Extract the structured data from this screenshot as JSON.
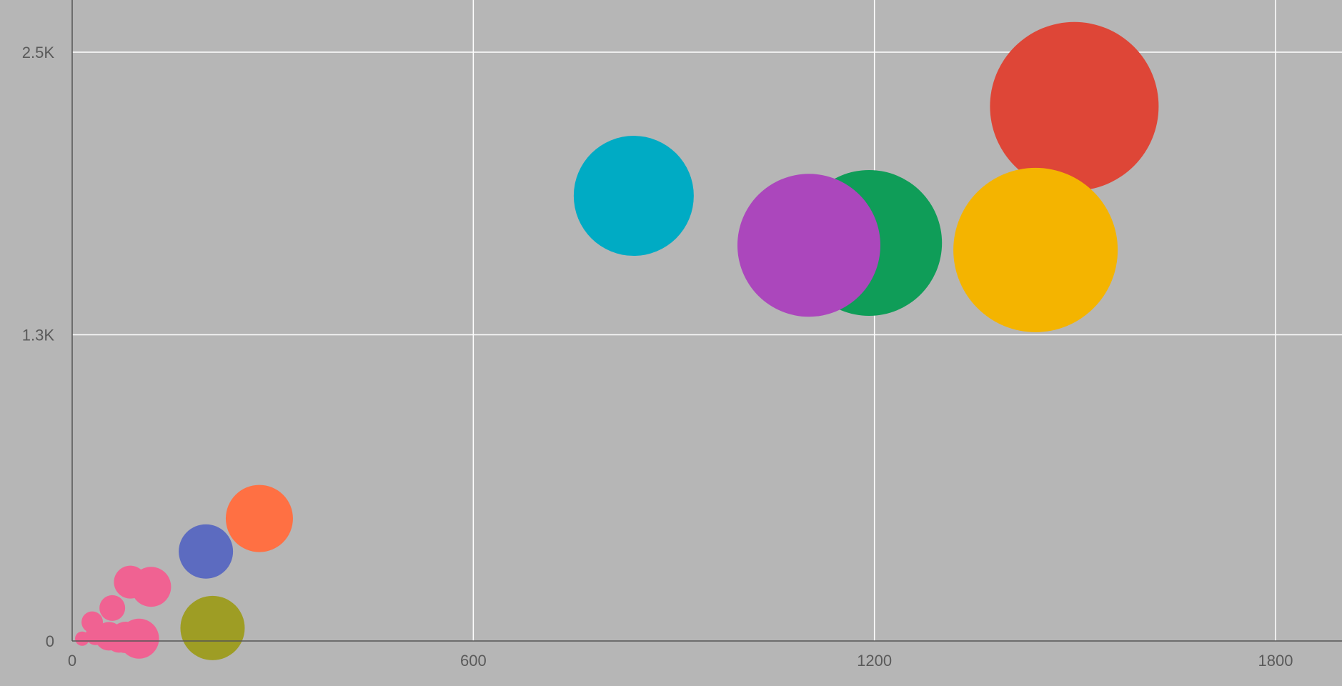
{
  "chart_data": {
    "type": "scatter",
    "variant": "bubble",
    "title": "",
    "xlabel": "",
    "ylabel": "",
    "xlim": [
      0,
      1890
    ],
    "ylim": [
      0,
      2720
    ],
    "x_ticks": [
      0,
      600,
      1200,
      1800
    ],
    "x_tick_labels": [
      "0",
      "600",
      "1200",
      "1800"
    ],
    "y_ticks": [
      0,
      1300,
      2500
    ],
    "y_tick_labels": [
      "0",
      "1.3K",
      "2.5K"
    ],
    "grid": true,
    "legend": "none",
    "colors": {
      "background": "#b6b6b6",
      "grid": "#ffffff",
      "axis": "#555555",
      "tick_text": "#5a5a5a"
    },
    "points": [
      {
        "x": 1499,
        "y": 2270,
        "size": 118,
        "color": "#de4637"
      },
      {
        "x": 840,
        "y": 1890,
        "size": 84,
        "color": "#00abc4"
      },
      {
        "x": 1192,
        "y": 1690,
        "size": 102,
        "color": "#0f9d58"
      },
      {
        "x": 1102,
        "y": 1680,
        "size": 100,
        "color": "#ab47bc"
      },
      {
        "x": 1441,
        "y": 1660,
        "size": 115,
        "color": "#f4b400"
      },
      {
        "x": 280,
        "y": 520,
        "size": 47,
        "color": "#ff7043"
      },
      {
        "x": 200,
        "y": 380,
        "size": 38,
        "color": "#5c6bc0"
      },
      {
        "x": 210,
        "y": 55,
        "size": 45,
        "color": "#9e9d24"
      },
      {
        "x": 118,
        "y": 230,
        "size": 28,
        "color": "#f06292"
      },
      {
        "x": 87,
        "y": 250,
        "size": 23,
        "color": "#f06292"
      },
      {
        "x": 60,
        "y": 140,
        "size": 18,
        "color": "#f06292"
      },
      {
        "x": 30,
        "y": 80,
        "size": 15,
        "color": "#f06292"
      },
      {
        "x": 100,
        "y": 10,
        "size": 28,
        "color": "#f06292"
      },
      {
        "x": 80,
        "y": 15,
        "size": 22,
        "color": "#f06292"
      },
      {
        "x": 55,
        "y": 20,
        "size": 20,
        "color": "#f06292"
      },
      {
        "x": 35,
        "y": 25,
        "size": 14,
        "color": "#f06292"
      },
      {
        "x": 15,
        "y": 10,
        "size": 10,
        "color": "#f06292"
      },
      {
        "x": 70,
        "y": 5,
        "size": 18,
        "color": "#f06292"
      }
    ]
  }
}
